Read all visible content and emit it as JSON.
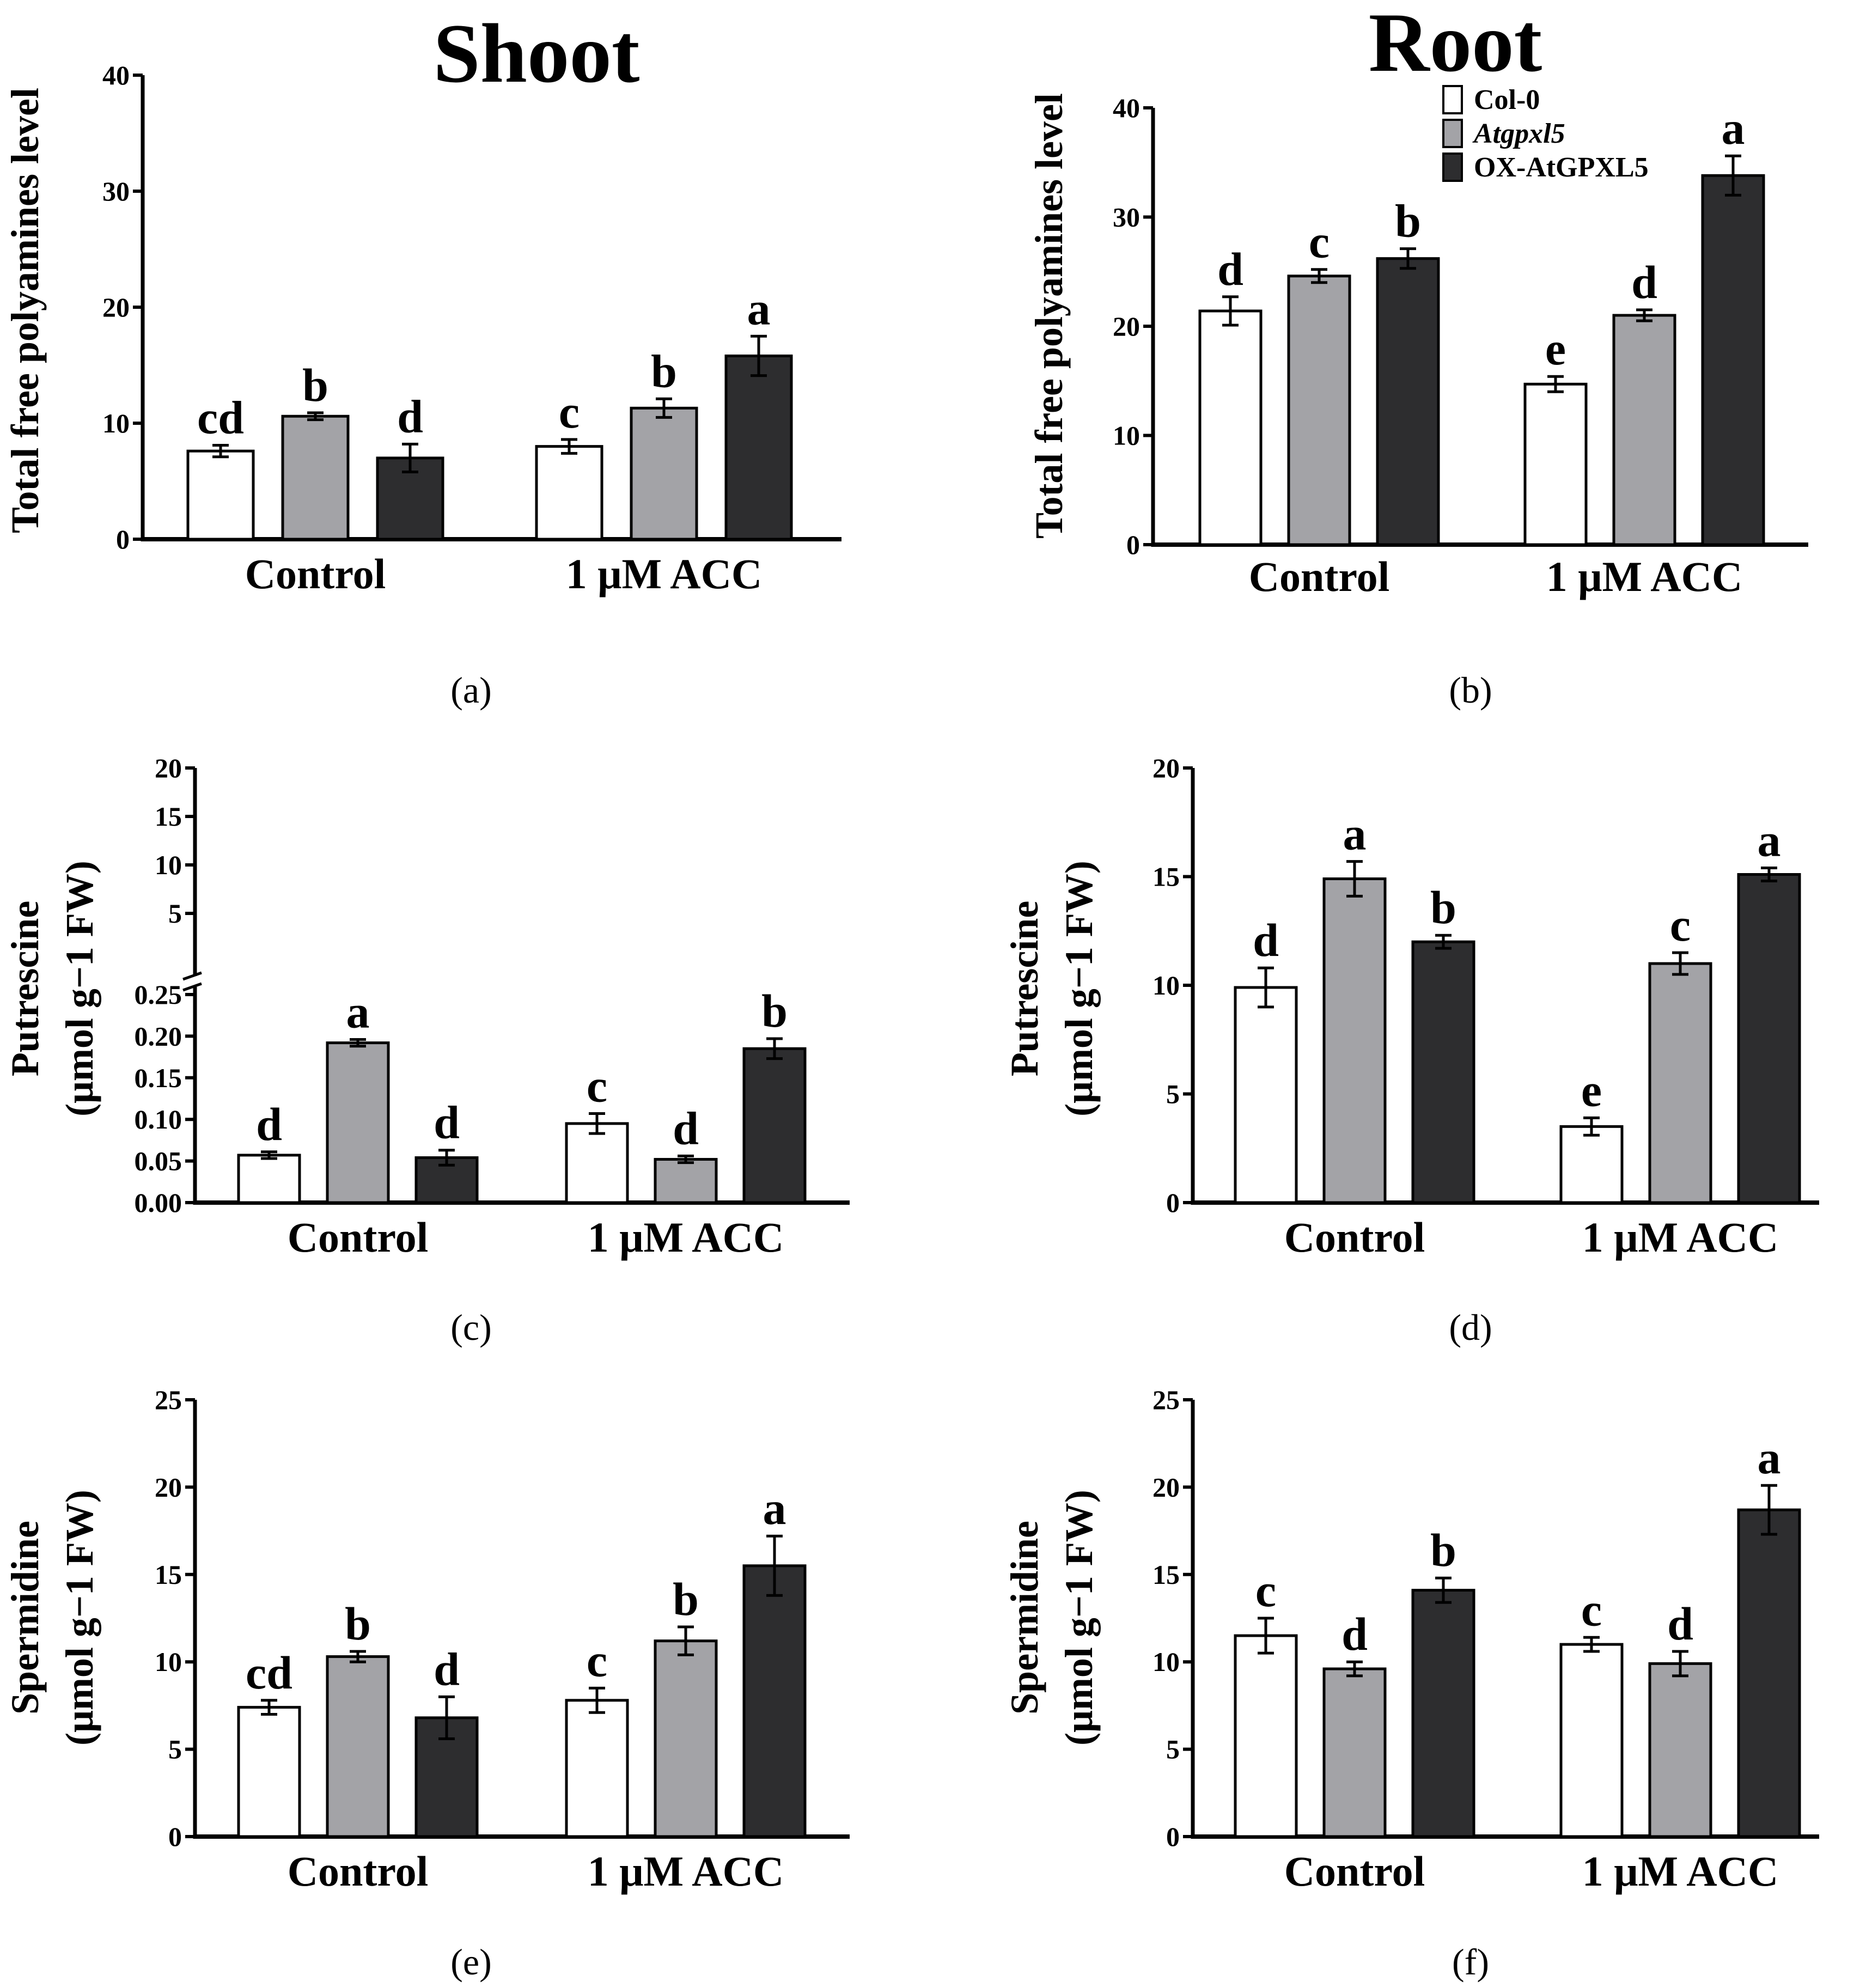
{
  "colors": {
    "col0": "#ffffff",
    "atgpxl5": "#a3a3a7",
    "ox": "#2d2d2f",
    "axis": "#000000"
  },
  "legend": {
    "items": [
      {
        "label": "Col-0",
        "italic": false
      },
      {
        "label": "Atgpxl5",
        "italic": true
      },
      {
        "label": "OX-AtGPXL5",
        "italic": false
      }
    ]
  },
  "chart_data": [
    {
      "id": "a",
      "panel_label": "(a)",
      "title": "Shoot",
      "type": "bar",
      "ylabel_lines": [
        "Total free polyamines level"
      ],
      "ylim": [
        0,
        40
      ],
      "yticks": [
        0,
        10,
        20,
        30,
        40
      ],
      "ytick_labels": [
        "0",
        "10",
        "20",
        "30",
        "40"
      ],
      "categories": [
        "Control",
        "1 μM ACC"
      ],
      "series": [
        {
          "name": "Col-0",
          "values": [
            7.6,
            8.0
          ],
          "errors": [
            0.5,
            0.6
          ],
          "letters": [
            "cd",
            "c"
          ]
        },
        {
          "name": "Atgpxl5",
          "values": [
            10.6,
            11.3
          ],
          "errors": [
            0.3,
            0.8
          ],
          "letters": [
            "b",
            "b"
          ]
        },
        {
          "name": "OX-AtGPXL5",
          "values": [
            7.0,
            15.8
          ],
          "errors": [
            1.2,
            1.7
          ],
          "letters": [
            "d",
            "a"
          ]
        }
      ]
    },
    {
      "id": "b",
      "panel_label": "(b)",
      "title": "Root",
      "type": "bar",
      "ylabel_lines": [
        "Total free polyamines level"
      ],
      "ylim": [
        0,
        40
      ],
      "yticks": [
        0,
        10,
        20,
        30,
        40
      ],
      "ytick_labels": [
        "0",
        "10",
        "20",
        "30",
        "40"
      ],
      "categories": [
        "Control",
        "1 μM ACC"
      ],
      "show_legend": true,
      "series": [
        {
          "name": "Col-0",
          "values": [
            21.4,
            14.7
          ],
          "errors": [
            1.3,
            0.7
          ],
          "letters": [
            "d",
            "e"
          ]
        },
        {
          "name": "Atgpxl5",
          "values": [
            24.6,
            21.0
          ],
          "errors": [
            0.6,
            0.5
          ],
          "letters": [
            "c",
            "d"
          ]
        },
        {
          "name": "OX-AtGPXL5",
          "values": [
            26.2,
            33.8
          ],
          "errors": [
            0.9,
            1.8
          ],
          "letters": [
            "b",
            "a"
          ]
        }
      ]
    },
    {
      "id": "c",
      "panel_label": "(c)",
      "title": "",
      "type": "bar",
      "ylabel_lines": [
        "Putrescine",
        "(μmol g−1 FW)"
      ],
      "broken_axis": true,
      "ylim_lower": [
        0,
        0.25
      ],
      "yticks_lower": [
        0,
        0.05,
        0.1,
        0.15,
        0.2,
        0.25
      ],
      "ytick_labels_lower": [
        "0.00",
        "0.05",
        "0.10",
        "0.15",
        "0.20",
        "0.25"
      ],
      "ylim_upper": [
        0,
        20
      ],
      "yticks_upper": [
        5,
        10,
        15,
        20
      ],
      "ytick_labels_upper": [
        "5",
        "10",
        "15",
        "20"
      ],
      "categories": [
        "Control",
        "1 μM ACC"
      ],
      "series": [
        {
          "name": "Col-0",
          "values": [
            0.057,
            0.095
          ],
          "errors": [
            0.004,
            0.012
          ],
          "letters": [
            "d",
            "c"
          ]
        },
        {
          "name": "Atgpxl5",
          "values": [
            0.192,
            0.052
          ],
          "errors": [
            0.004,
            0.004
          ],
          "letters": [
            "a",
            "d"
          ]
        },
        {
          "name": "OX-AtGPXL5",
          "values": [
            0.054,
            0.185
          ],
          "errors": [
            0.009,
            0.012
          ],
          "letters": [
            "d",
            "b"
          ]
        }
      ]
    },
    {
      "id": "d",
      "panel_label": "(d)",
      "title": "",
      "type": "bar",
      "ylabel_lines": [
        "Putrescine",
        "(μmol g−1 FW)"
      ],
      "ylim": [
        0,
        20
      ],
      "yticks": [
        0,
        5,
        10,
        15,
        20
      ],
      "ytick_labels": [
        "0",
        "5",
        "10",
        "15",
        "20"
      ],
      "categories": [
        "Control",
        "1 μM ACC"
      ],
      "series": [
        {
          "name": "Col-0",
          "values": [
            9.9,
            3.5
          ],
          "errors": [
            0.9,
            0.4
          ],
          "letters": [
            "d",
            "e"
          ]
        },
        {
          "name": "Atgpxl5",
          "values": [
            14.9,
            11.0
          ],
          "errors": [
            0.8,
            0.5
          ],
          "letters": [
            "a",
            "c"
          ]
        },
        {
          "name": "OX-AtGPXL5",
          "values": [
            12.0,
            15.1
          ],
          "errors": [
            0.3,
            0.3
          ],
          "letters": [
            "b",
            "a"
          ]
        }
      ]
    },
    {
      "id": "e",
      "panel_label": "(e)",
      "title": "",
      "type": "bar",
      "ylabel_lines": [
        "Spermidine",
        "(μmol g−1 FW)"
      ],
      "ylim": [
        0,
        25
      ],
      "yticks": [
        0,
        5,
        10,
        15,
        20,
        25
      ],
      "ytick_labels": [
        "0",
        "5",
        "10",
        "15",
        "20",
        "25"
      ],
      "categories": [
        "Control",
        "1 μM ACC"
      ],
      "series": [
        {
          "name": "Col-0",
          "values": [
            7.4,
            7.8
          ],
          "errors": [
            0.4,
            0.7
          ],
          "letters": [
            "cd",
            "c"
          ]
        },
        {
          "name": "Atgpxl5",
          "values": [
            10.3,
            11.2
          ],
          "errors": [
            0.3,
            0.8
          ],
          "letters": [
            "b",
            "b"
          ]
        },
        {
          "name": "OX-AtGPXL5",
          "values": [
            6.8,
            15.5
          ],
          "errors": [
            1.2,
            1.7
          ],
          "letters": [
            "d",
            "a"
          ]
        }
      ]
    },
    {
      "id": "f",
      "panel_label": "(f)",
      "title": "",
      "type": "bar",
      "ylabel_lines": [
        "Spermidine",
        "(μmol g−1 FW)"
      ],
      "ylim": [
        0,
        25
      ],
      "yticks": [
        0,
        5,
        10,
        15,
        20,
        25
      ],
      "ytick_labels": [
        "0",
        "5",
        "10",
        "15",
        "20",
        "25"
      ],
      "categories": [
        "Control",
        "1 μM ACC"
      ],
      "series": [
        {
          "name": "Col-0",
          "values": [
            11.5,
            11.0
          ],
          "errors": [
            1.0,
            0.4
          ],
          "letters": [
            "c",
            "c"
          ]
        },
        {
          "name": "Atgpxl5",
          "values": [
            9.6,
            9.9
          ],
          "errors": [
            0.4,
            0.7
          ],
          "letters": [
            "d",
            "d"
          ]
        },
        {
          "name": "OX-AtGPXL5",
          "values": [
            14.1,
            18.7
          ],
          "errors": [
            0.7,
            1.4
          ],
          "letters": [
            "b",
            "a"
          ]
        }
      ]
    }
  ]
}
